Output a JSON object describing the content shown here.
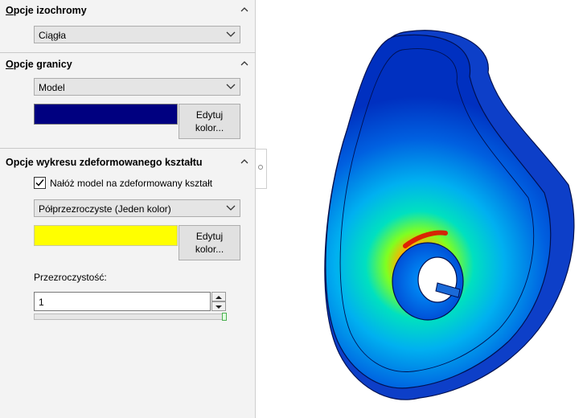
{
  "panel": {
    "isochrome": {
      "title_hotkey": "O",
      "title_rest": "pcje izochromy",
      "select_value": "Ciągła"
    },
    "boundary": {
      "title_hotkey": "O",
      "title_rest": "pcje granicy",
      "select_value": "Model",
      "color": "#000080",
      "edit_button": [
        "Edytuj",
        "kolor..."
      ]
    },
    "deformed": {
      "title": "Opcje wykresu zdeformowanego kształtu",
      "checkbox_label": "Nałóż model na zdeformowany kształt",
      "checkbox_checked": true,
      "select_value": "Półprzezroczyste (Jeden kolor)",
      "color": "#ffff00",
      "edit_button": [
        "Edytuj",
        "kolor..."
      ],
      "transparency_label": "Przezroczystość:",
      "transparency_value": "1",
      "transparency_level": 1.0
    }
  },
  "icons": {
    "section_toggle": "chevron-up-icon",
    "dropdown": "chevron-down-icon",
    "collapse": "circle-dot-icon"
  }
}
